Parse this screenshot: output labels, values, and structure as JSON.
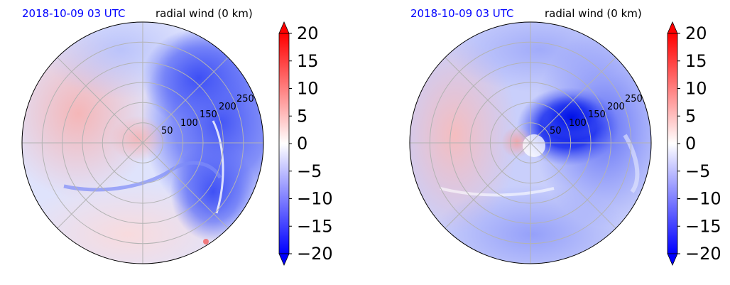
{
  "figure": {
    "panels": [
      {
        "time_label": "2018-10-09 03 UTC",
        "variable_label": "radial wind (0 km)",
        "colorbar_ticks": [
          "20",
          "15",
          "10",
          "5",
          "0",
          "−5",
          "−10",
          "−15",
          "−20"
        ]
      },
      {
        "time_label": "2018-10-09 03 UTC",
        "variable_label": "radial wind (0 km)",
        "colorbar_ticks": [
          "20",
          "15",
          "10",
          "5",
          "0",
          "−5",
          "−10",
          "−15",
          "−20"
        ]
      }
    ]
  },
  "colors": {
    "time_label": "#0000ff",
    "text": "#000000",
    "grid": "#b0b0b0",
    "cmap_low": "#0000ff",
    "cmap_mid": "#ffffff",
    "cmap_high": "#ff0000"
  },
  "chart_data": [
    {
      "type": "heatmap",
      "projection": "polar",
      "title": "radial wind (0 km)",
      "subtitle": "2018-10-09 03 UTC",
      "radial_ticks": [
        50,
        100,
        150,
        200,
        250
      ],
      "rmax": 300,
      "colorbar": {
        "vmin": -20,
        "vmax": 20,
        "ticks": [
          20,
          15,
          10,
          5,
          0,
          -5,
          -10,
          -15,
          -20
        ],
        "extend": "both",
        "cmap": "bwr"
      },
      "field_regions": [
        {
          "region": "east and northeast",
          "value": -12
        },
        {
          "region": "west",
          "value": 5
        },
        {
          "region": "south",
          "value": 2
        },
        {
          "region": "north",
          "value": -4
        },
        {
          "region": "centre",
          "value": 6
        }
      ]
    },
    {
      "type": "heatmap",
      "projection": "polar",
      "title": "radial wind (0 km)",
      "subtitle": "2018-10-09 03 UTC",
      "radial_ticks": [
        50,
        100,
        150,
        200,
        250
      ],
      "rmax": 300,
      "colorbar": {
        "vmin": -20,
        "vmax": 20,
        "ticks": [
          20,
          15,
          10,
          5,
          0,
          -5,
          -10,
          -15,
          -20
        ],
        "extend": "both",
        "cmap": "bwr"
      },
      "field_regions": [
        {
          "region": "inner core north-east",
          "value": -18
        },
        {
          "region": "east",
          "value": -10
        },
        {
          "region": "west",
          "value": 5
        },
        {
          "region": "south",
          "value": -6
        },
        {
          "region": "centre west",
          "value": 7
        }
      ]
    }
  ]
}
